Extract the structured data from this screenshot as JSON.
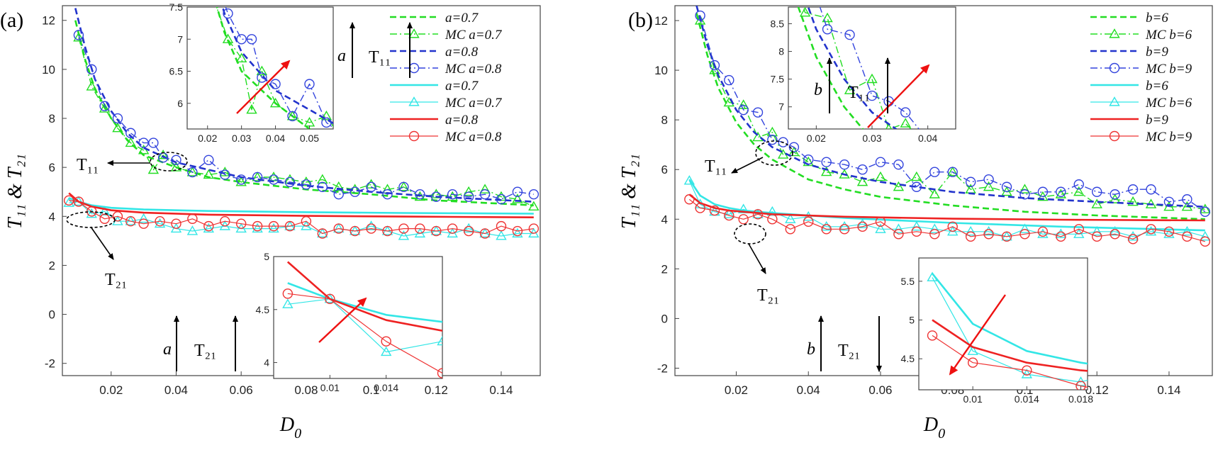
{
  "chart_data": [
    {
      "type": "line",
      "panel_label": "(a)",
      "xlabel": "D",
      "xlabel_sub": "0",
      "ylabel": "T₁₁ & T₂₁",
      "xlim": [
        0.005,
        0.152
      ],
      "ylim": [
        -2.5,
        12.6
      ],
      "xticks": [
        "0.02",
        "0.04",
        "0.06",
        "0.08",
        "0.1",
        "0.12",
        "0.14"
      ],
      "yticks": [
        "-2",
        "0",
        "2",
        "4",
        "6",
        "8",
        "10",
        "12"
      ],
      "legend": [
        "a=0.7",
        "MC a=0.7",
        "a=0.8",
        "MC a=0.8",
        "a=0.7",
        "MC a=0.7",
        "a=0.8",
        "MC a=0.8"
      ],
      "annotations": {
        "t11_label": "T₁₁",
        "t21_label": "T₂₁",
        "param_top": "a",
        "t11_arrow": "T₁₁",
        "param_bottom": "a",
        "t21_arrow": "T₂₁"
      },
      "series": [
        {
          "name": "a=0.7",
          "group": "T11",
          "color": "#22dd22",
          "style": "dashed",
          "x": [
            0.009,
            0.012,
            0.015,
            0.02,
            0.025,
            0.03,
            0.04,
            0.05,
            0.06,
            0.08,
            0.1,
            0.12,
            0.15
          ],
          "y": [
            12.0,
            10.4,
            9.2,
            8.0,
            7.1,
            6.5,
            6.0,
            5.6,
            5.4,
            5.1,
            4.9,
            4.65,
            4.45
          ]
        },
        {
          "name": "MC a=0.7",
          "group": "T11",
          "color": "#22dd22",
          "style": "dashdot",
          "x": [
            0.01,
            0.014,
            0.018,
            0.022,
            0.026,
            0.03,
            0.033,
            0.036,
            0.04,
            0.045,
            0.05,
            0.055,
            0.06,
            0.065,
            0.07,
            0.075,
            0.08,
            0.085,
            0.09,
            0.095,
            0.1,
            0.105,
            0.11,
            0.115,
            0.12,
            0.125,
            0.13,
            0.135,
            0.14,
            0.145,
            0.15
          ],
          "y": [
            11.3,
            9.3,
            8.4,
            7.6,
            7.0,
            6.7,
            5.9,
            6.5,
            6.0,
            5.8,
            5.7,
            5.8,
            5.4,
            5.6,
            5.6,
            5.5,
            5.4,
            5.5,
            5.2,
            5.1,
            5.3,
            5.1,
            5.2,
            4.8,
            4.9,
            4.8,
            5.0,
            5.1,
            4.8,
            4.7,
            4.4
          ]
        },
        {
          "name": "a=0.8",
          "group": "T11",
          "color": "#2233cc",
          "style": "dashed",
          "x": [
            0.009,
            0.012,
            0.015,
            0.02,
            0.025,
            0.03,
            0.04,
            0.05,
            0.06,
            0.08,
            0.1,
            0.12,
            0.15
          ],
          "y": [
            12.5,
            10.9,
            9.6,
            8.3,
            7.4,
            6.8,
            6.2,
            5.9,
            5.6,
            5.25,
            5.0,
            4.8,
            4.6
          ]
        },
        {
          "name": "MC a=0.8",
          "group": "T11",
          "color": "#3344dd",
          "style": "dashdot",
          "x": [
            0.01,
            0.014,
            0.018,
            0.022,
            0.026,
            0.03,
            0.033,
            0.036,
            0.04,
            0.045,
            0.05,
            0.055,
            0.06,
            0.065,
            0.07,
            0.075,
            0.08,
            0.085,
            0.09,
            0.095,
            0.1,
            0.105,
            0.11,
            0.115,
            0.12,
            0.125,
            0.13,
            0.135,
            0.14,
            0.145,
            0.15
          ],
          "y": [
            11.4,
            10.0,
            8.5,
            8.0,
            7.4,
            7.0,
            7.0,
            6.4,
            6.3,
            5.8,
            6.3,
            5.7,
            5.5,
            5.6,
            5.5,
            5.4,
            5.3,
            5.2,
            4.9,
            5.0,
            5.2,
            4.9,
            5.2,
            4.9,
            4.8,
            4.9,
            4.8,
            4.9,
            4.7,
            5.0,
            4.9
          ]
        },
        {
          "name": "a=0.7",
          "group": "T21",
          "color": "#33e6e6",
          "style": "solid",
          "x": [
            0.007,
            0.01,
            0.014,
            0.02,
            0.03,
            0.05,
            0.08,
            0.11,
            0.15
          ],
          "y": [
            4.75,
            4.6,
            4.45,
            4.35,
            4.28,
            4.22,
            4.17,
            4.14,
            4.11
          ]
        },
        {
          "name": "MC a=0.7",
          "group": "T21",
          "color": "#33e6e6",
          "style": "thin",
          "x": [
            0.007,
            0.01,
            0.014,
            0.018,
            0.022,
            0.026,
            0.03,
            0.035,
            0.04,
            0.045,
            0.05,
            0.055,
            0.06,
            0.065,
            0.07,
            0.075,
            0.08,
            0.085,
            0.09,
            0.095,
            0.1,
            0.105,
            0.11,
            0.115,
            0.12,
            0.125,
            0.13,
            0.135,
            0.14,
            0.145,
            0.15
          ],
          "y": [
            4.55,
            4.6,
            4.1,
            4.2,
            3.8,
            3.8,
            3.9,
            3.7,
            3.5,
            3.4,
            3.5,
            3.6,
            3.5,
            3.5,
            3.5,
            3.6,
            3.6,
            3.3,
            3.5,
            3.4,
            3.6,
            3.4,
            3.2,
            3.3,
            3.4,
            3.3,
            3.5,
            3.3,
            3.2,
            3.3,
            3.3
          ]
        },
        {
          "name": "a=0.8",
          "group": "T21",
          "color": "#ee2222",
          "style": "solid",
          "x": [
            0.007,
            0.01,
            0.014,
            0.02,
            0.03,
            0.05,
            0.08,
            0.11,
            0.15
          ],
          "y": [
            4.95,
            4.6,
            4.4,
            4.25,
            4.15,
            4.07,
            4.02,
            3.99,
            3.96
          ]
        },
        {
          "name": "MC a=0.8",
          "group": "T21",
          "color": "#ee3333",
          "style": "thin",
          "x": [
            0.007,
            0.01,
            0.014,
            0.018,
            0.022,
            0.026,
            0.03,
            0.035,
            0.04,
            0.045,
            0.05,
            0.055,
            0.06,
            0.065,
            0.07,
            0.075,
            0.08,
            0.085,
            0.09,
            0.095,
            0.1,
            0.105,
            0.11,
            0.115,
            0.12,
            0.125,
            0.13,
            0.135,
            0.14,
            0.145,
            0.15
          ],
          "y": [
            4.65,
            4.6,
            4.2,
            3.9,
            4.0,
            3.8,
            3.7,
            3.8,
            3.7,
            3.9,
            3.6,
            3.8,
            3.7,
            3.6,
            3.6,
            3.6,
            3.8,
            3.3,
            3.5,
            3.4,
            3.5,
            3.4,
            3.5,
            3.5,
            3.4,
            3.5,
            3.4,
            3.3,
            3.6,
            3.4,
            3.5
          ]
        }
      ],
      "inset_top": {
        "xlim": [
          0.014,
          0.057
        ],
        "ylim": [
          5.6,
          7.5
        ],
        "xticks": [
          "0.02",
          "0.03",
          "0.04",
          "0.05"
        ],
        "yticks": [
          "6",
          "6.5",
          "7",
          "7.5"
        ]
      },
      "inset_bottom": {
        "xlim": [
          0.006,
          0.018
        ],
        "ylim": [
          3.85,
          5.0
        ],
        "xticks": [
          "0.01",
          "0.014"
        ],
        "yticks": [
          "4",
          "4.5",
          "5"
        ]
      }
    },
    {
      "type": "line",
      "panel_label": "(b)",
      "xlabel": "D",
      "xlabel_sub": "0",
      "ylabel": "T₁₁ & T₂₁",
      "xlim": [
        0.003,
        0.152
      ],
      "ylim": [
        -2.3,
        12.6
      ],
      "xticks": [
        "0.02",
        "0.04",
        "0.06",
        "0.08",
        "0.1",
        "0.12",
        "0.14"
      ],
      "yticks": [
        "-2",
        "0",
        "2",
        "4",
        "6",
        "8",
        "10",
        "12"
      ],
      "legend": [
        "b=6",
        "MC b=6",
        "b=9",
        "MC b=9",
        "b=6",
        "MC b=6",
        "b=9",
        "MC b=9"
      ],
      "annotations": {
        "t11_label": "T₁₁",
        "t21_label": "T₂₁",
        "param_top": "b",
        "t11_arrow": "T₁₁",
        "param_bottom": "b",
        "t21_arrow": "T₂₁"
      },
      "series": [
        {
          "name": "b=6",
          "group": "T11",
          "color": "#22dd22",
          "style": "dashed",
          "x": [
            0.009,
            0.012,
            0.015,
            0.02,
            0.025,
            0.03,
            0.04,
            0.05,
            0.06,
            0.08,
            0.1,
            0.12,
            0.15
          ],
          "y": [
            12.3,
            10.6,
            9.3,
            7.9,
            7.0,
            6.4,
            5.6,
            5.2,
            4.9,
            4.55,
            4.3,
            4.15,
            4.0
          ]
        },
        {
          "name": "MC b=6",
          "group": "T11",
          "color": "#22dd22",
          "style": "dashdot",
          "x": [
            0.01,
            0.014,
            0.018,
            0.022,
            0.026,
            0.03,
            0.033,
            0.036,
            0.04,
            0.045,
            0.05,
            0.055,
            0.06,
            0.065,
            0.07,
            0.075,
            0.08,
            0.085,
            0.09,
            0.095,
            0.1,
            0.105,
            0.11,
            0.115,
            0.12,
            0.125,
            0.13,
            0.135,
            0.14,
            0.145,
            0.15
          ],
          "y": [
            12.0,
            10.0,
            8.7,
            8.6,
            7.3,
            7.5,
            6.6,
            6.7,
            6.3,
            5.9,
            5.8,
            5.5,
            5.7,
            5.3,
            5.7,
            5.0,
            5.9,
            5.2,
            5.3,
            5.1,
            5.2,
            4.9,
            5.0,
            5.1,
            4.6,
            4.8,
            4.7,
            4.6,
            4.5,
            4.5,
            4.4
          ]
        },
        {
          "name": "b=9",
          "group": "T11",
          "color": "#2233cc",
          "style": "dashed",
          "x": [
            0.009,
            0.012,
            0.015,
            0.02,
            0.025,
            0.03,
            0.04,
            0.05,
            0.06,
            0.08,
            0.1,
            0.12,
            0.15
          ],
          "y": [
            12.6,
            11.0,
            9.8,
            8.4,
            7.5,
            6.9,
            6.2,
            5.8,
            5.5,
            5.1,
            4.85,
            4.7,
            4.5
          ]
        },
        {
          "name": "MC b=9",
          "group": "T11",
          "color": "#3344dd",
          "style": "dashdot",
          "x": [
            0.01,
            0.014,
            0.018,
            0.022,
            0.026,
            0.03,
            0.033,
            0.036,
            0.04,
            0.045,
            0.05,
            0.055,
            0.06,
            0.065,
            0.07,
            0.075,
            0.08,
            0.085,
            0.09,
            0.095,
            0.1,
            0.105,
            0.11,
            0.115,
            0.12,
            0.125,
            0.13,
            0.135,
            0.14,
            0.145,
            0.15
          ],
          "y": [
            12.2,
            10.2,
            9.6,
            8.4,
            8.3,
            7.2,
            7.1,
            6.9,
            6.4,
            6.3,
            6.2,
            6.0,
            6.3,
            6.2,
            5.3,
            5.9,
            5.9,
            5.5,
            5.6,
            5.3,
            5.0,
            5.1,
            5.1,
            5.4,
            5.1,
            5.0,
            5.2,
            5.2,
            4.7,
            4.8,
            4.3
          ]
        },
        {
          "name": "b=6",
          "group": "T21",
          "color": "#33e6e6",
          "style": "solid",
          "x": [
            0.007,
            0.01,
            0.014,
            0.018,
            0.022,
            0.03,
            0.05,
            0.08,
            0.11,
            0.15
          ],
          "y": [
            5.6,
            4.95,
            4.6,
            4.45,
            4.35,
            4.25,
            4.05,
            3.85,
            3.7,
            3.55
          ]
        },
        {
          "name": "MC b=6",
          "group": "T21",
          "color": "#33e6e6",
          "style": "thin",
          "x": [
            0.007,
            0.01,
            0.014,
            0.018,
            0.022,
            0.026,
            0.03,
            0.035,
            0.04,
            0.045,
            0.05,
            0.055,
            0.06,
            0.065,
            0.07,
            0.075,
            0.08,
            0.085,
            0.09,
            0.095,
            0.1,
            0.105,
            0.11,
            0.115,
            0.12,
            0.125,
            0.13,
            0.135,
            0.14,
            0.145,
            0.15
          ],
          "y": [
            5.55,
            4.6,
            4.3,
            4.2,
            4.4,
            4.2,
            4.3,
            4.0,
            4.1,
            3.7,
            3.7,
            3.8,
            3.6,
            3.6,
            3.7,
            3.6,
            3.5,
            3.5,
            3.5,
            3.3,
            3.6,
            3.4,
            3.4,
            3.4,
            3.5,
            3.5,
            3.3,
            3.5,
            3.4,
            3.5,
            3.3
          ]
        },
        {
          "name": "b=9",
          "group": "T21",
          "color": "#ee2222",
          "style": "solid",
          "x": [
            0.007,
            0.01,
            0.014,
            0.018,
            0.022,
            0.03,
            0.05,
            0.08,
            0.11,
            0.15
          ],
          "y": [
            5.0,
            4.65,
            4.45,
            4.35,
            4.3,
            4.2,
            4.1,
            4.02,
            3.98,
            3.95
          ]
        },
        {
          "name": "MC b=9",
          "group": "T21",
          "color": "#ee3333",
          "style": "thin",
          "x": [
            0.007,
            0.01,
            0.014,
            0.018,
            0.022,
            0.026,
            0.03,
            0.035,
            0.04,
            0.045,
            0.05,
            0.055,
            0.06,
            0.065,
            0.07,
            0.075,
            0.08,
            0.085,
            0.09,
            0.095,
            0.1,
            0.105,
            0.11,
            0.115,
            0.12,
            0.125,
            0.13,
            0.135,
            0.14,
            0.145,
            0.15
          ],
          "y": [
            4.8,
            4.45,
            4.35,
            4.15,
            4.0,
            4.2,
            4.0,
            3.6,
            3.9,
            3.6,
            3.6,
            3.7,
            3.9,
            3.4,
            3.5,
            3.4,
            3.7,
            3.3,
            3.4,
            3.3,
            3.4,
            3.5,
            3.3,
            3.6,
            3.3,
            3.4,
            3.2,
            3.6,
            3.5,
            3.3,
            3.1
          ]
        }
      ],
      "inset_top": {
        "xlim": [
          0.015,
          0.045
        ],
        "ylim": [
          6.6,
          8.8
        ],
        "xticks": [
          "0.02",
          "0.03",
          "0.04"
        ],
        "yticks": [
          "7",
          "7.5",
          "8",
          "8.5"
        ]
      },
      "inset_bottom": {
        "xlim": [
          0.006,
          0.0185
        ],
        "ylim": [
          4.1,
          5.8
        ],
        "xticks": [
          "0.01",
          "0.014",
          "0.018"
        ],
        "yticks": [
          "4.5",
          "5",
          "5.5"
        ]
      }
    }
  ]
}
